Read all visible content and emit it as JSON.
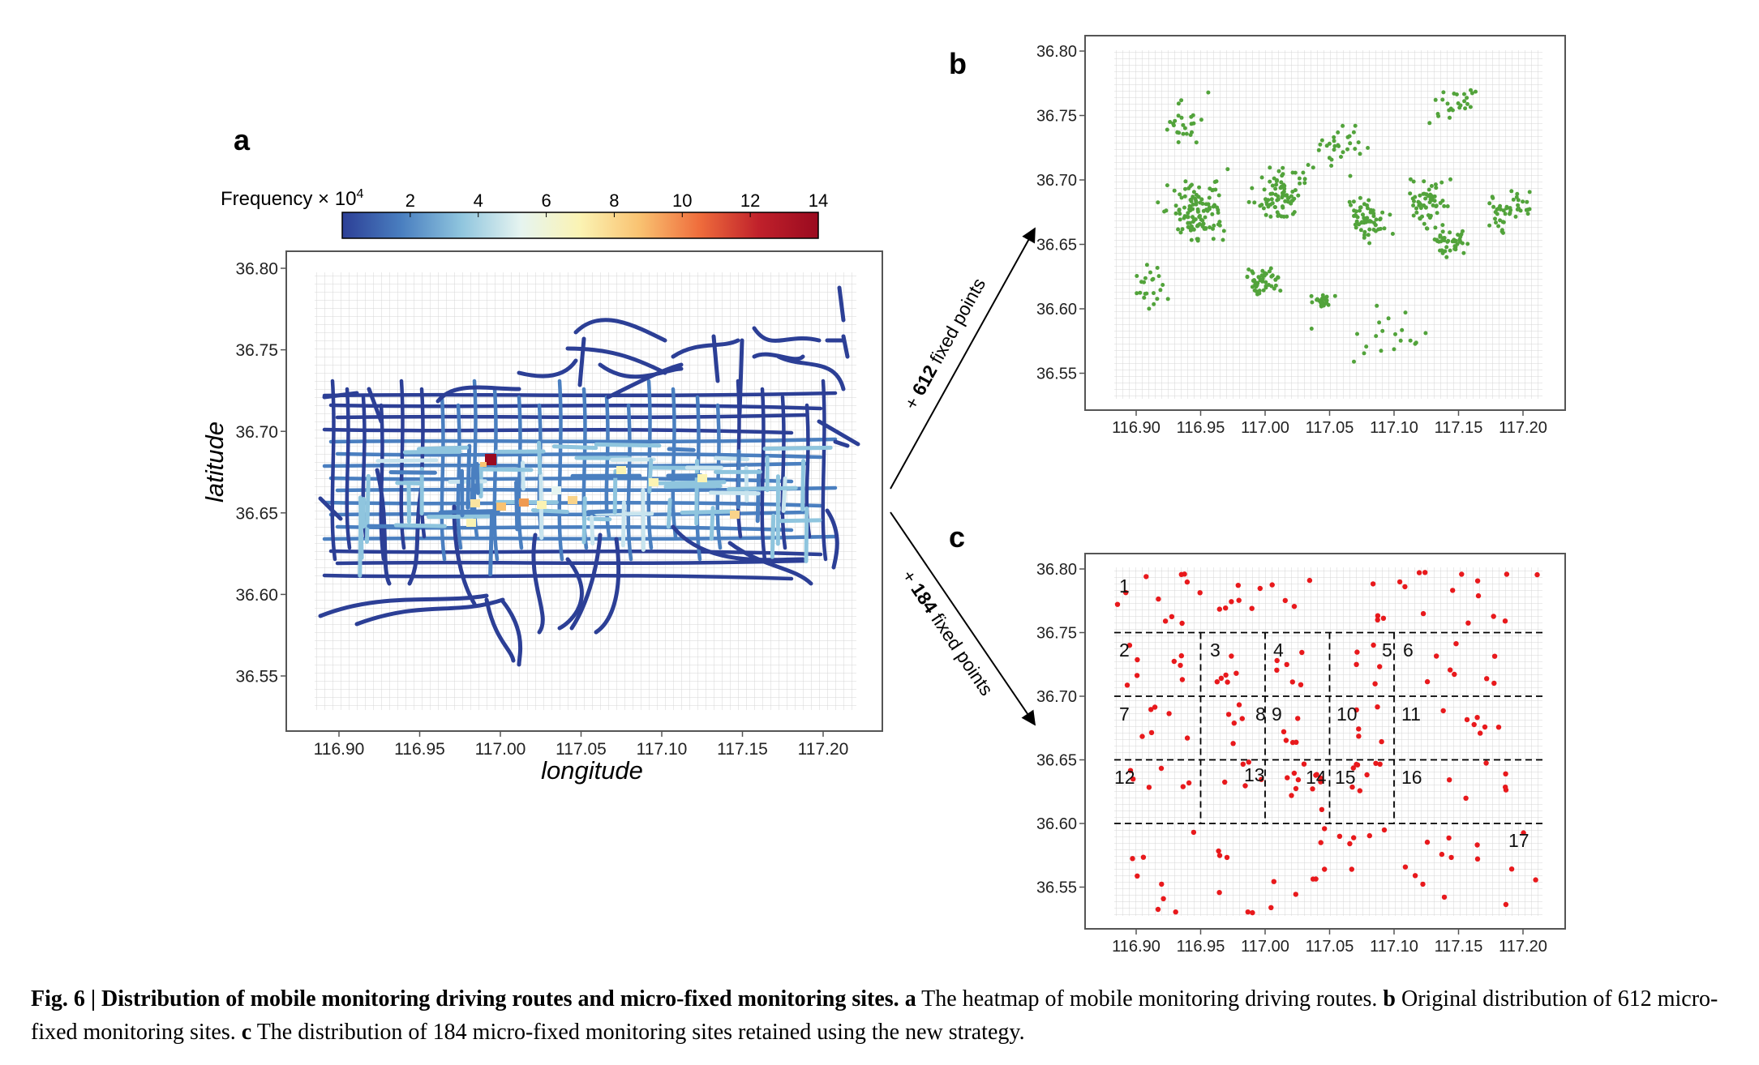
{
  "panels": {
    "a": {
      "letter": "a",
      "colorbar": {
        "title": "Frequency × 10",
        "title_sup": "4",
        "ticks": [
          "2",
          "4",
          "6",
          "8",
          "10",
          "12",
          "14"
        ],
        "range": [
          0,
          14
        ],
        "colors": [
          "#2c3f96",
          "#4a7fc0",
          "#8fc5de",
          "#e6f4f0",
          "#fbf3b3",
          "#f9c271",
          "#ef6d3c",
          "#c0212b",
          "#9a0a1f"
        ]
      },
      "xlabel": "longitude",
      "ylabel": "latitude",
      "xticks": [
        "116.90",
        "116.95",
        "117.00",
        "117.05",
        "117.10",
        "117.15",
        "117.20"
      ],
      "yticks": [
        "36.80",
        "36.75",
        "36.70",
        "36.65",
        "36.60",
        "36.55"
      ]
    },
    "b": {
      "letter": "b",
      "point_color": "#52a33b",
      "xticks": [
        "116.90",
        "116.95",
        "117.00",
        "117.05",
        "117.10",
        "117.15",
        "117.20"
      ],
      "yticks": [
        "36.80",
        "36.75",
        "36.70",
        "36.65",
        "36.60",
        "36.55"
      ],
      "arrow_label_prefix": "+ ",
      "arrow_label_count": "612",
      "arrow_label_suffix": " fixed points"
    },
    "c": {
      "letter": "c",
      "point_color": "#e8191c",
      "xticks": [
        "116.90",
        "116.95",
        "117.00",
        "117.05",
        "117.10",
        "117.15",
        "117.20"
      ],
      "yticks": [
        "36.80",
        "36.75",
        "36.70",
        "36.65",
        "36.60",
        "36.55"
      ],
      "zones": [
        "1",
        "2",
        "3",
        "4",
        "5",
        "6",
        "7",
        "8",
        "9",
        "10",
        "11",
        "12",
        "13",
        "14",
        "15",
        "16",
        "17"
      ],
      "arrow_label_prefix": "+ ",
      "arrow_label_count": "184",
      "arrow_label_suffix": " fixed points"
    }
  },
  "caption": {
    "heading": "Fig. 6 | Distribution of mobile monitoring driving routes and micro-fixed monitoring sites.",
    "a_label": "a",
    "a_text": " The heatmap of mobile monitoring driving routes. ",
    "b_label": "b",
    "b_text": " Original distribution of 612 micro-fixed monitoring sites. ",
    "c_label": "c",
    "c_text": " The distribution of 184 micro-fixed monitoring sites retained using the new strategy."
  }
}
